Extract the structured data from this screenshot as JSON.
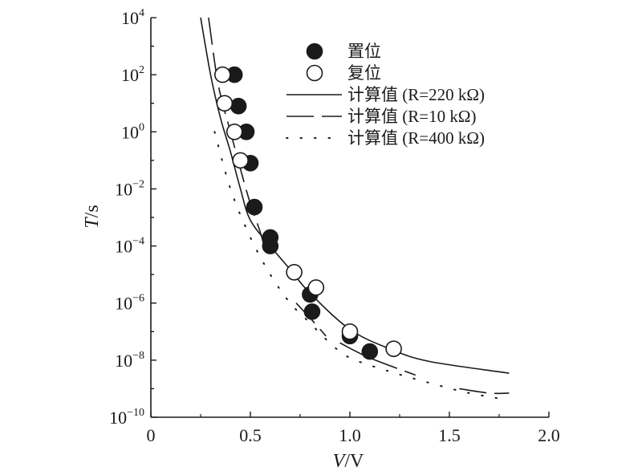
{
  "chart_data": {
    "type": "scatter",
    "title": "",
    "xlabel": {
      "var": "V",
      "unit": "V"
    },
    "ylabel": {
      "var": "T",
      "unit": "s"
    },
    "xlim": [
      0,
      2.0
    ],
    "ylim_exp": [
      -10,
      4
    ],
    "yscale": "log",
    "grid": false,
    "legend_position": "top-right",
    "x_ticks": [
      0,
      0.5,
      1.0,
      1.5,
      2.0
    ],
    "x_tick_labels": [
      "0",
      "0.5",
      "1.0",
      "1.5",
      "2.0"
    ],
    "y_tick_exponents": [
      -10,
      -8,
      -6,
      -4,
      -2,
      0,
      2,
      4
    ],
    "series": [
      {
        "name": "置位",
        "kind": "filled-circle",
        "points": [
          [
            0.42,
            100
          ],
          [
            0.44,
            8
          ],
          [
            0.48,
            1
          ],
          [
            0.5,
            0.08
          ],
          [
            0.52,
            0.0023
          ],
          [
            0.6,
            0.0002
          ],
          [
            0.6,
            0.0001
          ],
          [
            0.8,
            2e-06
          ],
          [
            0.81,
            5e-07
          ],
          [
            1.0,
            7e-08
          ],
          [
            1.1,
            2e-08
          ]
        ]
      },
      {
        "name": "复位",
        "kind": "open-circle",
        "points": [
          [
            0.36,
            100
          ],
          [
            0.37,
            10
          ],
          [
            0.42,
            1
          ],
          [
            0.45,
            0.1
          ],
          [
            0.72,
            1.2e-05
          ],
          [
            0.83,
            3.5e-06
          ],
          [
            1.0,
            1e-07
          ],
          [
            1.22,
            2.5e-08
          ]
        ]
      },
      {
        "name": "计算值 (R=220 kΩ)",
        "kind": "solid-line",
        "points": [
          [
            0.25,
            10000
          ],
          [
            0.3,
            100
          ],
          [
            0.35,
            3
          ],
          [
            0.4,
            0.2
          ],
          [
            0.45,
            0.01
          ],
          [
            0.5,
            0.0008
          ],
          [
            0.6,
            0.0001
          ],
          [
            0.7,
            1.5e-05
          ],
          [
            0.8,
            2.2e-06
          ],
          [
            1.0,
            1.2e-07
          ],
          [
            1.2,
            2.5e-08
          ],
          [
            1.4,
            9e-09
          ],
          [
            1.8,
            3.5e-09
          ]
        ]
      },
      {
        "name": "计算值 (R=10 kΩ)",
        "kind": "dashed-line",
        "segments": [
          [
            [
              0.29,
              10000
            ],
            [
              0.33,
              100
            ],
            [
              0.36,
              10
            ],
            [
              0.4,
              1
            ],
            [
              0.45,
              0.05
            ],
            [
              0.5,
              0.003
            ],
            [
              0.55,
              0.0003
            ],
            [
              0.58,
              5e-05
            ]
          ],
          [
            [
              0.73,
              1e-06
            ],
            [
              0.8,
              3e-07
            ],
            [
              0.88,
              7e-08
            ]
          ],
          [
            [
              0.95,
              4e-08
            ],
            [
              1.1,
              1.2e-08
            ],
            [
              1.33,
              3e-09
            ]
          ],
          [
            [
              1.55,
              1e-09
            ],
            [
              1.7,
              7e-10
            ],
            [
              1.8,
              7e-10
            ]
          ]
        ]
      },
      {
        "name": "计算值 (R=400 kΩ)",
        "kind": "dotted-line",
        "points": [
          [
            0.32,
            1
          ],
          [
            0.4,
            0.01
          ],
          [
            0.5,
            0.0002
          ],
          [
            0.6,
            1e-05
          ],
          [
            0.7,
            1e-06
          ],
          [
            0.8,
            2e-07
          ],
          [
            0.9,
            4e-08
          ],
          [
            1.0,
            1.2e-08
          ],
          [
            1.2,
            4e-09
          ],
          [
            1.4,
            1.6e-09
          ],
          [
            1.6,
            7e-10
          ],
          [
            1.8,
            4e-10
          ]
        ]
      }
    ]
  },
  "legend": [
    {
      "marker": "filled-circle",
      "label": "置位"
    },
    {
      "marker": "open-circle",
      "label": "复位"
    },
    {
      "marker": "solid-line",
      "label": "计算值 (R=220 kΩ)"
    },
    {
      "marker": "dashed-line",
      "label": "计算值 (R=10 kΩ)"
    },
    {
      "marker": "dotted-line",
      "label": "计算值 (R=400 kΩ)"
    }
  ],
  "colors": {
    "ink": "#1a1a1a",
    "background": "#ffffff"
  }
}
